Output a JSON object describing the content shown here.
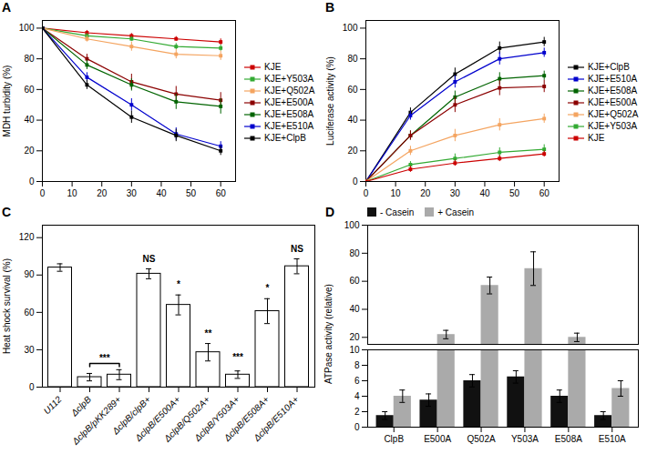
{
  "chart_data": [
    {
      "type": "line",
      "title": "A",
      "ylabel": "MDH turbidity (%)",
      "marker": "square",
      "legend": "right",
      "xlim": [
        0,
        65
      ],
      "ylim": [
        0,
        105
      ],
      "xticks": [
        0,
        10,
        20,
        30,
        40,
        50,
        60
      ],
      "yticks": [
        0,
        20,
        40,
        60,
        80,
        100
      ],
      "x": [
        0,
        15,
        30,
        45,
        60
      ],
      "series": [
        {
          "name": "KJE",
          "color": "#CC0000",
          "values": [
            100,
            97,
            95,
            93,
            91
          ],
          "yerr": [
            0,
            1.5,
            1.5,
            1.5,
            2
          ]
        },
        {
          "name": "KJE+Y503A",
          "color": "#33AA33",
          "values": [
            100,
            95,
            93,
            88,
            87
          ],
          "yerr": [
            0,
            1.5,
            1.5,
            2,
            2
          ]
        },
        {
          "name": "KJE+Q502A",
          "color": "#F4A460",
          "values": [
            100,
            93,
            88,
            83,
            82
          ],
          "yerr": [
            0,
            2,
            3,
            3,
            3
          ]
        },
        {
          "name": "KJE+E500A",
          "color": "#8B0000",
          "values": [
            100,
            80,
            65,
            57,
            53
          ],
          "yerr": [
            0,
            3,
            5,
            5,
            5
          ]
        },
        {
          "name": "KJE+E508A",
          "color": "#006400",
          "values": [
            100,
            76,
            63,
            52,
            49
          ],
          "yerr": [
            0,
            3,
            4,
            5,
            5
          ]
        },
        {
          "name": "KJE+E510A",
          "color": "#0000CD",
          "values": [
            100,
            68,
            50,
            31,
            23
          ],
          "yerr": [
            0,
            3,
            4,
            4,
            3
          ]
        },
        {
          "name": "KJE+ClpB",
          "color": "#000000",
          "values": [
            100,
            63,
            42,
            30,
            20
          ],
          "yerr": [
            0,
            3,
            4,
            4,
            3
          ]
        }
      ]
    },
    {
      "type": "line",
      "title": "B",
      "ylabel": "Luciferase activity (%)",
      "marker": "square",
      "legend": "right",
      "xlim": [
        0,
        65
      ],
      "ylim": [
        0,
        105
      ],
      "xticks": [
        0,
        10,
        20,
        30,
        40,
        50,
        60
      ],
      "yticks": [
        0,
        20,
        40,
        60,
        80,
        100
      ],
      "x": [
        0,
        15,
        30,
        45,
        60
      ],
      "series": [
        {
          "name": "KJE+ClpB",
          "color": "#000000",
          "values": [
            0,
            45,
            70,
            87,
            91
          ],
          "yerr": [
            0,
            3,
            4,
            4,
            3
          ]
        },
        {
          "name": "KJE+E510A",
          "color": "#0000CD",
          "values": [
            0,
            43,
            65,
            80,
            84
          ],
          "yerr": [
            0,
            3,
            4,
            4,
            3
          ]
        },
        {
          "name": "KJE+E508A",
          "color": "#006400",
          "values": [
            0,
            30,
            55,
            67,
            69
          ],
          "yerr": [
            0,
            3,
            4,
            4,
            3
          ]
        },
        {
          "name": "KJE+E500A",
          "color": "#8B0000",
          "values": [
            0,
            30,
            50,
            61,
            62
          ],
          "yerr": [
            0,
            3,
            5,
            5,
            4
          ]
        },
        {
          "name": "KJE+Q502A",
          "color": "#F4A460",
          "values": [
            0,
            20,
            30,
            37,
            41
          ],
          "yerr": [
            0,
            3,
            4,
            4,
            3
          ]
        },
        {
          "name": "KJE+Y503A",
          "color": "#33AA33",
          "values": [
            0,
            11,
            15,
            19,
            21
          ],
          "yerr": [
            0,
            2,
            3,
            3,
            3
          ]
        },
        {
          "name": "KJE",
          "color": "#CC0000",
          "values": [
            0,
            8,
            12,
            15,
            18
          ],
          "yerr": [
            0,
            2,
            2,
            2,
            2
          ]
        }
      ]
    },
    {
      "type": "bar",
      "title": "C",
      "ylabel": "Heat shock survival (%)",
      "color": "white",
      "ylim": [
        0,
        130
      ],
      "yticks": [
        0,
        30,
        60,
        90,
        120
      ],
      "categories": [
        "U112",
        "ΔclpB",
        "ΔclpB/pKK289+",
        "ΔclpB/clpB+",
        "ΔclpB/E500A+",
        "ΔclpB/Q502A+",
        "ΔclpB/Y503A+",
        "ΔclpB/E508A+",
        "ΔclpB/E510A+"
      ],
      "values": [
        96,
        8,
        10,
        91,
        66,
        28,
        10,
        61,
        97
      ],
      "yerr": [
        3,
        3,
        4,
        4,
        8,
        7,
        3,
        10,
        6
      ],
      "annotations": [
        {
          "text": "***",
          "x": [
            "ΔclpB",
            "ΔclpB/pKK289+"
          ],
          "y": 19
        },
        {
          "text": "NS",
          "x": "ΔclpB/clpB+",
          "y": 100
        },
        {
          "text": "*",
          "x": "ΔclpB/E500A+",
          "y": 79
        },
        {
          "text": "**",
          "x": "ΔclpB/Q502A+",
          "y": 40
        },
        {
          "text": "***",
          "x": "ΔclpB/Y503A+",
          "y": 21
        },
        {
          "text": "*",
          "x": "ΔclpB/E508A+",
          "y": 76
        },
        {
          "text": "NS",
          "x": "ΔclpB/E510A+",
          "y": 108
        }
      ]
    },
    {
      "type": "bar",
      "title": "D",
      "ylabel": "ATPase activity (relative)",
      "legend": "upper left",
      "categories": [
        "ClpB",
        "E500A",
        "Q502A",
        "Y503A",
        "E508A",
        "E510A"
      ],
      "ylim": [
        [
          0,
          10
        ],
        [
          15,
          100
        ]
      ],
      "yticks": [
        [
          0,
          2,
          4,
          6,
          8,
          10
        ],
        [
          20,
          40,
          60,
          80,
          100
        ]
      ],
      "series": [
        {
          "name": "- Casein",
          "color": "#111111",
          "values": [
            1.5,
            3.5,
            6,
            6.5,
            4,
            1.5
          ],
          "yerr": [
            0.5,
            0.8,
            0.8,
            0.8,
            0.8,
            0.5
          ]
        },
        {
          "name": "+ Casein",
          "color": "#aaaaaa",
          "values": [
            4,
            22,
            57,
            69,
            20,
            5
          ],
          "yerr": [
            0.8,
            3,
            6,
            12,
            3,
            1
          ]
        }
      ]
    }
  ]
}
